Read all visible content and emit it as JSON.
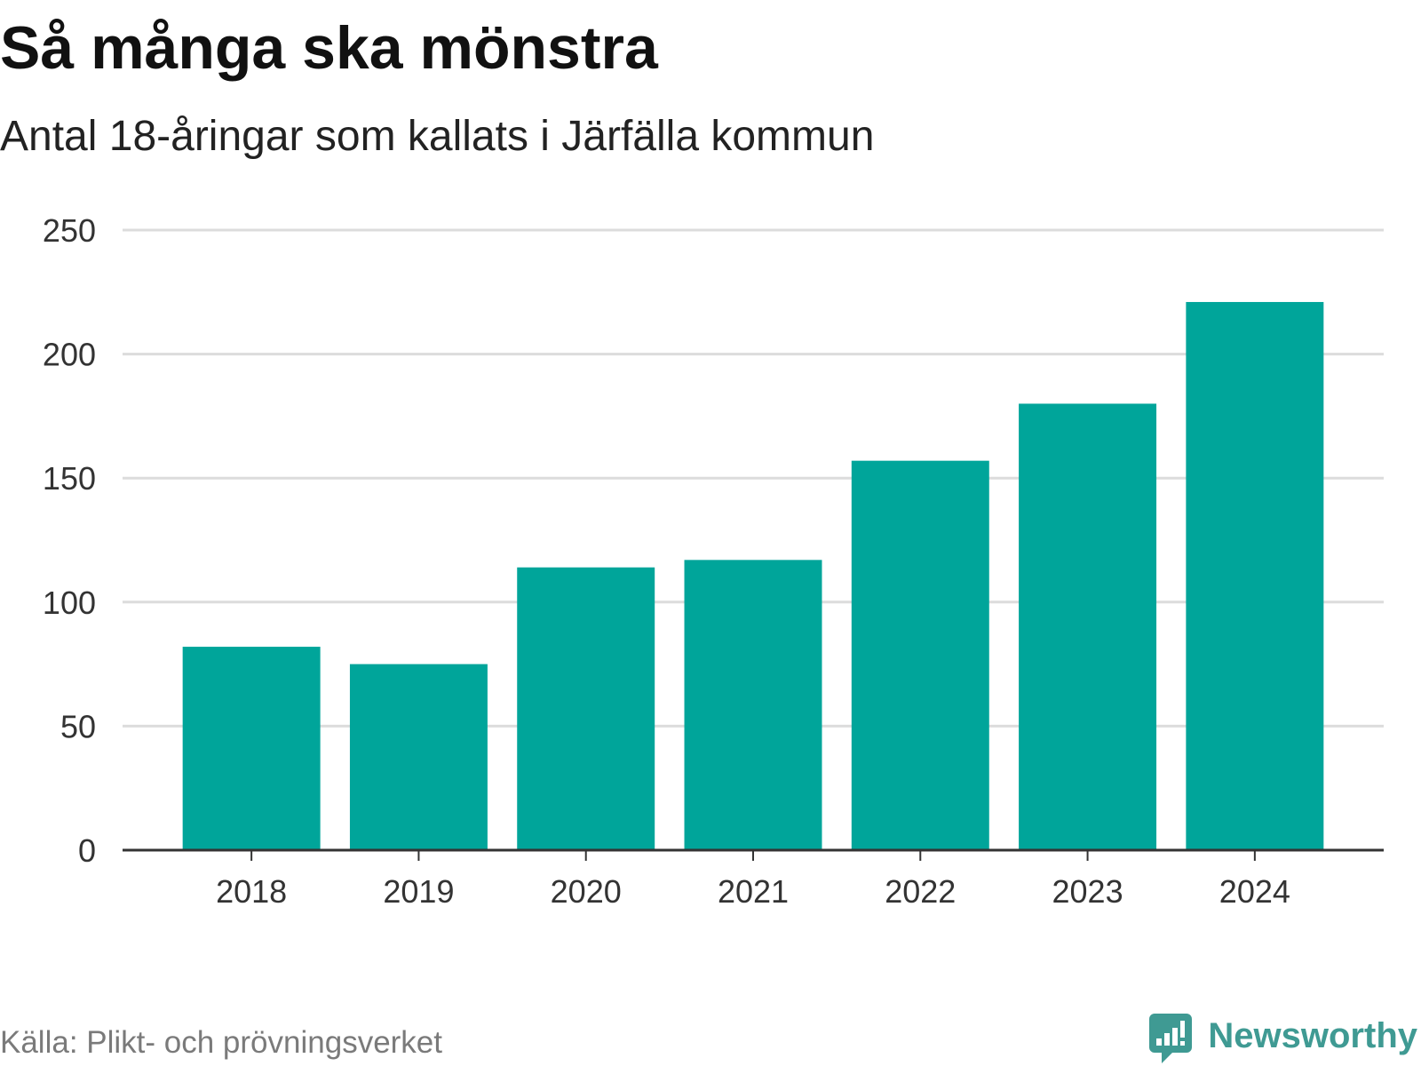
{
  "chart_data": {
    "type": "bar",
    "title": "Så många ska mönstra",
    "subtitle": "Antal 18-åringar som kallats i Järfälla kommun",
    "categories": [
      "2018",
      "2019",
      "2020",
      "2021",
      "2022",
      "2023",
      "2024"
    ],
    "values": [
      82,
      75,
      114,
      117,
      157,
      180,
      221
    ],
    "xlabel": "",
    "ylabel": "",
    "ylim": [
      0,
      250
    ],
    "yticks": [
      0,
      50,
      100,
      150,
      200,
      250
    ],
    "grid": true
  },
  "source": "Källa: Plikt- och prövningsverket",
  "logo": {
    "text": "Newsworthy",
    "icon": "newsworthy-logo-icon"
  },
  "colors": {
    "bar": "#00a59a",
    "grid": "#dcdcdc",
    "axis": "#333333",
    "logo": "#3f9a93",
    "source": "#7a7a7a"
  }
}
